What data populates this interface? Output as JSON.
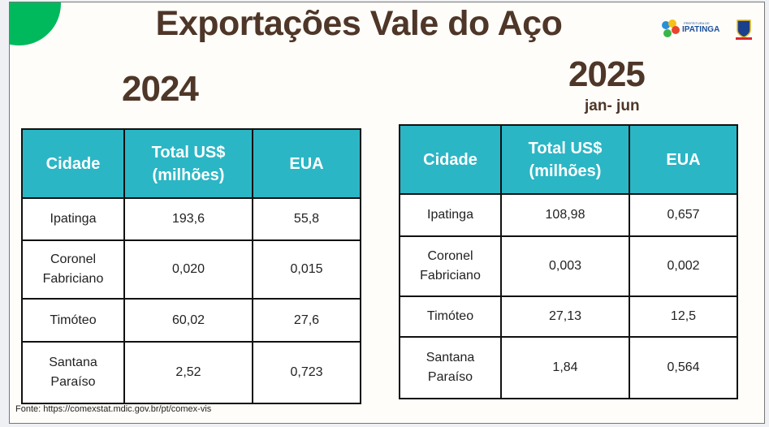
{
  "title": "Exportações  Vale do Aço",
  "logo_text": "PREFEITURA DE IPATINGA",
  "colors": {
    "header": "#2bb6c5",
    "accent": "#00b95c",
    "title": "#4e3628"
  },
  "left": {
    "year": "2024",
    "headers": [
      "Cidade",
      "Total US$ (milhões)",
      "EUA"
    ],
    "rows": [
      [
        "Ipatinga",
        "193,6",
        "55,8"
      ],
      [
        "Coronel Fabriciano",
        "0,020",
        "0,015"
      ],
      [
        "Timóteo",
        "60,02",
        "27,6"
      ],
      [
        "Santana Paraíso",
        "2,52",
        "0,723"
      ]
    ]
  },
  "right": {
    "year": "2025",
    "period": "jan- jun",
    "headers": [
      "Cidade",
      "Total US$ (milhões)",
      "EUA"
    ],
    "rows": [
      [
        "Ipatinga",
        "108,98",
        "0,657"
      ],
      [
        "Coronel Fabriciano",
        "0,003",
        "0,002"
      ],
      [
        "Timóteo",
        "27,13",
        "12,5"
      ],
      [
        "Santana Paraíso",
        "1,84",
        "0,564"
      ]
    ]
  },
  "source": "Fonte: https://comexstat.mdic.gov.br/pt/comex-vis"
}
